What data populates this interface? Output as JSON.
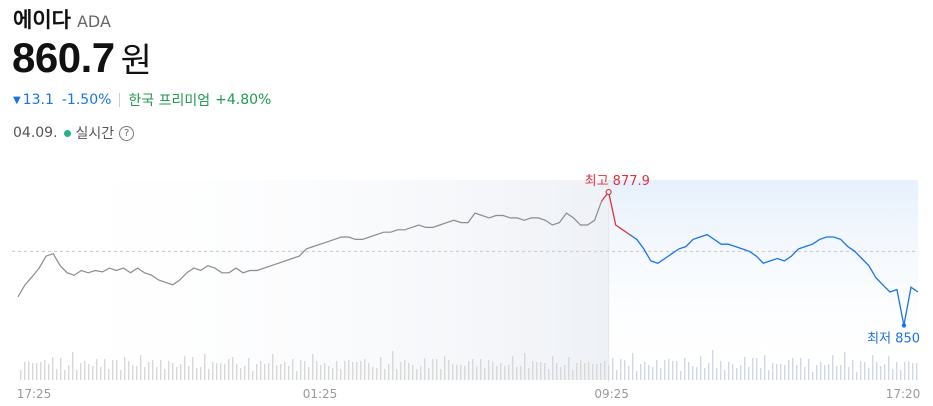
{
  "coin": {
    "name": "에이다",
    "symbol": "ADA"
  },
  "price": {
    "value": "860.7",
    "unit": "원"
  },
  "change": {
    "arrow": "▼",
    "amount": "13.1",
    "percent": "-1.50%"
  },
  "premium": {
    "label": "한국 프리미엄",
    "value": "+4.80%"
  },
  "status": {
    "date": "04.09.",
    "label": "실시간",
    "help_icon": "question-circle-icon"
  },
  "colors": {
    "down": "#1a73e8",
    "premium": "#1f9a4e",
    "high": "#e0313d",
    "low": "#1a73e8",
    "past_line": "#8c8c8c",
    "live": "#20b486"
  },
  "chart_data": {
    "type": "line",
    "x_ticks": [
      "17:25",
      "01:25",
      "09:25",
      "17:20"
    ],
    "high": {
      "label": "최고",
      "value": "877.9"
    },
    "low": {
      "label": "최저",
      "value": "850"
    },
    "reference_line": "dashed",
    "volume_bars": true,
    "series": [
      {
        "values": [
          856.0,
          858.5,
          860.2,
          862.0,
          864.5,
          865.0,
          862.5,
          861.0,
          860.5,
          861.5,
          861.0,
          861.5,
          861.2,
          862.0,
          861.5,
          862.0,
          861.0,
          862.0,
          861.0,
          860.5,
          859.5,
          859.0,
          858.5,
          859.5,
          861.0,
          862.0,
          861.5,
          862.5,
          862.0,
          861.0,
          861.0,
          862.0,
          861.0,
          861.5,
          861.5,
          862.0,
          862.5,
          863.0,
          863.5,
          864.0,
          864.5,
          866.0,
          866.5,
          867.0,
          867.5,
          868.0,
          868.5,
          868.5,
          868.0,
          868.0,
          868.5,
          869.0,
          869.5,
          869.5,
          870.0,
          870.0,
          870.5,
          871.0,
          870.5,
          870.5,
          871.0,
          871.5,
          872.0,
          871.5,
          871.5,
          873.5,
          873.0,
          872.5,
          873.0,
          873.0,
          872.5,
          872.5,
          872.0,
          872.5,
          872.5,
          872.0,
          871.0,
          871.5,
          873.5,
          872.5,
          871.0,
          871.0,
          872.0,
          876.0,
          877.9,
          871.0,
          870.0,
          869.0,
          868.0,
          866.0,
          863.5,
          863.0,
          864.0,
          865.0,
          866.0,
          866.5,
          868.0,
          868.5,
          869.0,
          868.0,
          867.0,
          867.0,
          866.5,
          866.0,
          865.5,
          864.5,
          863.0,
          863.5,
          864.0,
          863.5,
          864.5,
          866.0,
          866.5,
          867.0,
          868.0,
          868.5,
          868.5,
          868.0,
          866.5,
          865.5,
          864.0,
          862.5,
          860.0,
          858.5,
          857.0,
          857.5,
          850.0,
          858.0,
          857.0
        ]
      }
    ]
  }
}
